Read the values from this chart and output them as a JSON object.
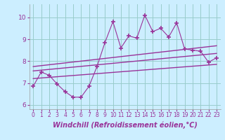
{
  "xlabel": "Windchill (Refroidissement éolien,°C)",
  "bg_color": "#cceeff",
  "line_color": "#993399",
  "grid_color": "#99cccc",
  "xlim": [
    -0.5,
    23.5
  ],
  "ylim": [
    5.8,
    10.6
  ],
  "xticks": [
    0,
    1,
    2,
    3,
    4,
    5,
    6,
    7,
    8,
    9,
    10,
    11,
    12,
    13,
    14,
    15,
    16,
    17,
    18,
    19,
    20,
    21,
    22,
    23
  ],
  "yticks": [
    6,
    7,
    8,
    9,
    10
  ],
  "data_x": [
    0,
    1,
    2,
    3,
    4,
    5,
    6,
    7,
    8,
    9,
    10,
    11,
    12,
    13,
    14,
    15,
    16,
    17,
    18,
    19,
    20,
    21,
    22,
    23
  ],
  "data_y": [
    6.85,
    7.5,
    7.35,
    6.95,
    6.6,
    6.35,
    6.35,
    6.85,
    7.75,
    8.85,
    9.8,
    8.6,
    9.15,
    9.05,
    10.1,
    9.35,
    9.5,
    9.1,
    9.75,
    8.55,
    8.5,
    8.45,
    7.95,
    8.15
  ],
  "trend1_x": [
    0,
    23
  ],
  "trend1_y": [
    7.2,
    7.85
  ],
  "trend2_x": [
    0,
    23
  ],
  "trend2_y": [
    7.55,
    8.35
  ],
  "trend3_x": [
    0,
    23
  ],
  "trend3_y": [
    7.75,
    8.7
  ],
  "font_color": "#993399",
  "tick_fontsize": 5.5,
  "label_fontsize": 7.0
}
